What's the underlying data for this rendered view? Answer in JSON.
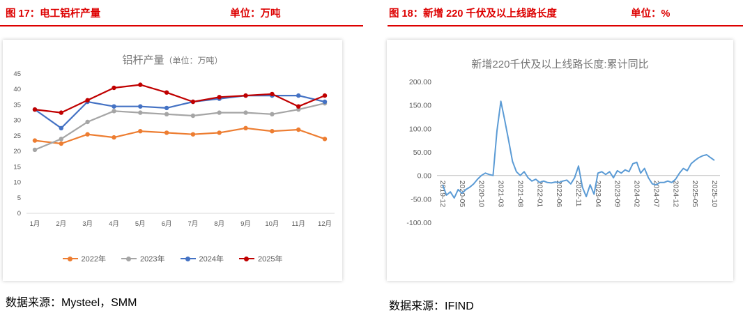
{
  "header_left": {
    "title": "图 17：电工铝杆产量",
    "unit": "单位：万吨"
  },
  "header_right": {
    "title": "图 18：新增 220 千伏及以上线路长度",
    "unit": "单位：%"
  },
  "footer": {
    "left_source": "数据来源：Mysteel，SMM",
    "right_source": "数据来源：IFIND"
  },
  "colors": {
    "accent_red": "#dd0000",
    "series_2022": "#ED7D31",
    "series_2023": "#A5A5A5",
    "series_2024": "#4472C4",
    "series_2025": "#C00000",
    "line_blue": "#5B9BD5",
    "tick_gray": "#595959",
    "title_gray": "#757575"
  },
  "chart_data": [
    {
      "type": "line",
      "title": "铝杆产量",
      "title_unit": "（单位：万吨）",
      "categories": [
        "1月",
        "2月",
        "3月",
        "4月",
        "5月",
        "6月",
        "7月",
        "8月",
        "9月",
        "10月",
        "11月",
        "12月"
      ],
      "series": [
        {
          "name": "2022年",
          "color": "#ED7D31",
          "values": [
            23.5,
            22.5,
            25.5,
            24.5,
            26.5,
            26,
            25.5,
            26,
            27.5,
            26.5,
            27,
            24
          ]
        },
        {
          "name": "2023年",
          "color": "#A5A5A5",
          "values": [
            20.5,
            24,
            29.5,
            33,
            32.5,
            32,
            31.5,
            32.5,
            32.5,
            32,
            33.5,
            35.5
          ]
        },
        {
          "name": "2024年",
          "color": "#4472C4",
          "values": [
            33.5,
            27.5,
            36,
            34.5,
            34.5,
            34,
            36,
            37,
            38,
            38,
            38,
            36
          ]
        },
        {
          "name": "2025年",
          "color": "#C00000",
          "values": [
            33.5,
            32.5,
            36.5,
            40.5,
            41.5,
            39,
            36,
            37.5,
            38,
            38.5,
            34.5,
            38
          ]
        }
      ],
      "ylim": [
        0,
        45
      ],
      "ytick_step": 5,
      "grid": false,
      "legend_position": "bottom"
    },
    {
      "type": "line",
      "title": "新增220千伏及以上线路长度:累计同比",
      "x": [
        "2019-12",
        "2020-01",
        "2020-02",
        "2020-03",
        "2020-04",
        "2020-05",
        "2020-06",
        "2020-07",
        "2020-08",
        "2020-09",
        "2020-10",
        "2020-11",
        "2020-12",
        "2021-01",
        "2021-02",
        "2021-03",
        "2021-04",
        "2021-05",
        "2021-06",
        "2021-07",
        "2021-08",
        "2021-09",
        "2021-10",
        "2021-11",
        "2021-12",
        "2022-01",
        "2022-02",
        "2022-03",
        "2022-04",
        "2022-05",
        "2022-06",
        "2022-07",
        "2022-08",
        "2022-09",
        "2022-10",
        "2022-11",
        "2022-12",
        "2023-01",
        "2023-02",
        "2023-03",
        "2023-04",
        "2023-05",
        "2023-06",
        "2023-07",
        "2023-08",
        "2023-09",
        "2023-10",
        "2023-11",
        "2023-12",
        "2024-01",
        "2024-02",
        "2024-03",
        "2024-04",
        "2024-05",
        "2024-06",
        "2024-07",
        "2024-08",
        "2024-09",
        "2024-10",
        "2024-11",
        "2024-12",
        "2025-01",
        "2025-02",
        "2025-03",
        "2025-04",
        "2025-05",
        "2025-06",
        "2025-07",
        "2025-08",
        "2025-09",
        "2025-10"
      ],
      "xtick_labels": [
        "2019-12",
        "2020-05",
        "2020-10",
        "2021-03",
        "2021-08",
        "2022-01",
        "2022-06",
        "2022-11",
        "2023-04",
        "2023-09",
        "2024-02",
        "2024-07",
        "2024-12",
        "2025-05",
        "2025-10"
      ],
      "xtick_interval": 5,
      "series": [
        {
          "name": "新增220千伏及以上线路长度:累计同比",
          "color": "#5B9BD5",
          "values": [
            -20,
            -42,
            -35,
            -48,
            -30,
            -38,
            -30,
            -25,
            -18,
            -8,
            0,
            5,
            2,
            0,
            95,
            158,
            118,
            75,
            30,
            8,
            0,
            8,
            -5,
            -12,
            -8,
            -15,
            -12,
            -15,
            -16,
            -14,
            -15,
            -12,
            -10,
            -18,
            -5,
            20,
            -25,
            -45,
            -20,
            -40,
            5,
            8,
            2,
            8,
            -5,
            10,
            5,
            12,
            8,
            25,
            28,
            5,
            15,
            -5,
            -18,
            -20,
            -15,
            -15,
            -12,
            -15,
            -8,
            5,
            15,
            10,
            25,
            32,
            38,
            42,
            44,
            38,
            32
          ]
        }
      ],
      "ylim": [
        -100,
        200
      ],
      "ytick_step": 50,
      "ytick_format": "2dp",
      "grid": false,
      "legend_position": "none"
    }
  ]
}
